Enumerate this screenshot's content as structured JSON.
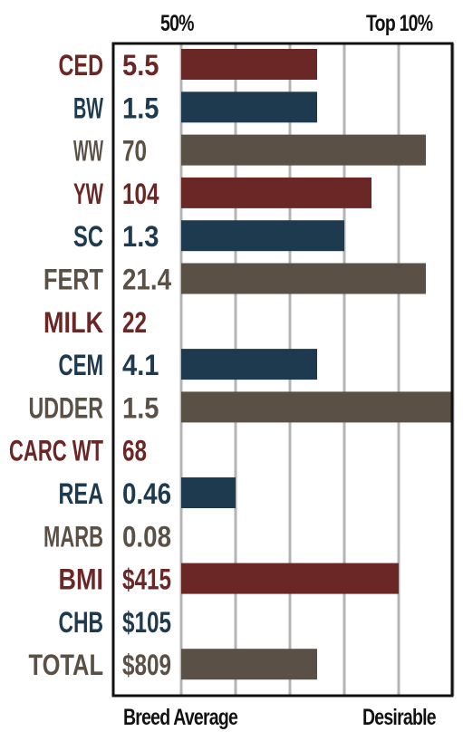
{
  "header": {
    "left_label": "50%",
    "right_label": "Top 10%"
  },
  "footer": {
    "left_label": "Breed Average",
    "right_label": "Desirable"
  },
  "colors": {
    "red": "#6b2626",
    "blue": "#1e3a4f",
    "gray": "#5a5045",
    "gridline": "#b3b3b8",
    "frame": "#111111"
  },
  "chart_data": {
    "type": "bar",
    "orientation": "horizontal",
    "x_scale_note": "bar length from Breed Average toward Desirable",
    "xlim": [
      0,
      5
    ],
    "categories": [
      "CED",
      "BW",
      "WW",
      "YW",
      "SC",
      "FERT",
      "MILK",
      "CEM",
      "UDDER",
      "CARC WT",
      "REA",
      "MARB",
      "BMI",
      "CHB",
      "TOTAL"
    ],
    "value_labels": [
      "5.5",
      "1.5",
      "70",
      "104",
      "1.3",
      "21.4",
      "22",
      "4.1",
      "1.5",
      "68",
      "0.46",
      "0.08",
      "$415",
      "$105",
      "$809"
    ],
    "bar_values": [
      2.5,
      2.5,
      4.5,
      3.5,
      3.0,
      4.5,
      0,
      2.5,
      5.0,
      0,
      1.0,
      0,
      4.0,
      0,
      2.5
    ],
    "bar_colors": [
      "red",
      "blue",
      "gray",
      "red",
      "blue",
      "gray",
      "red",
      "blue",
      "gray",
      "red",
      "blue",
      "gray",
      "red",
      "blue",
      "gray"
    ]
  }
}
